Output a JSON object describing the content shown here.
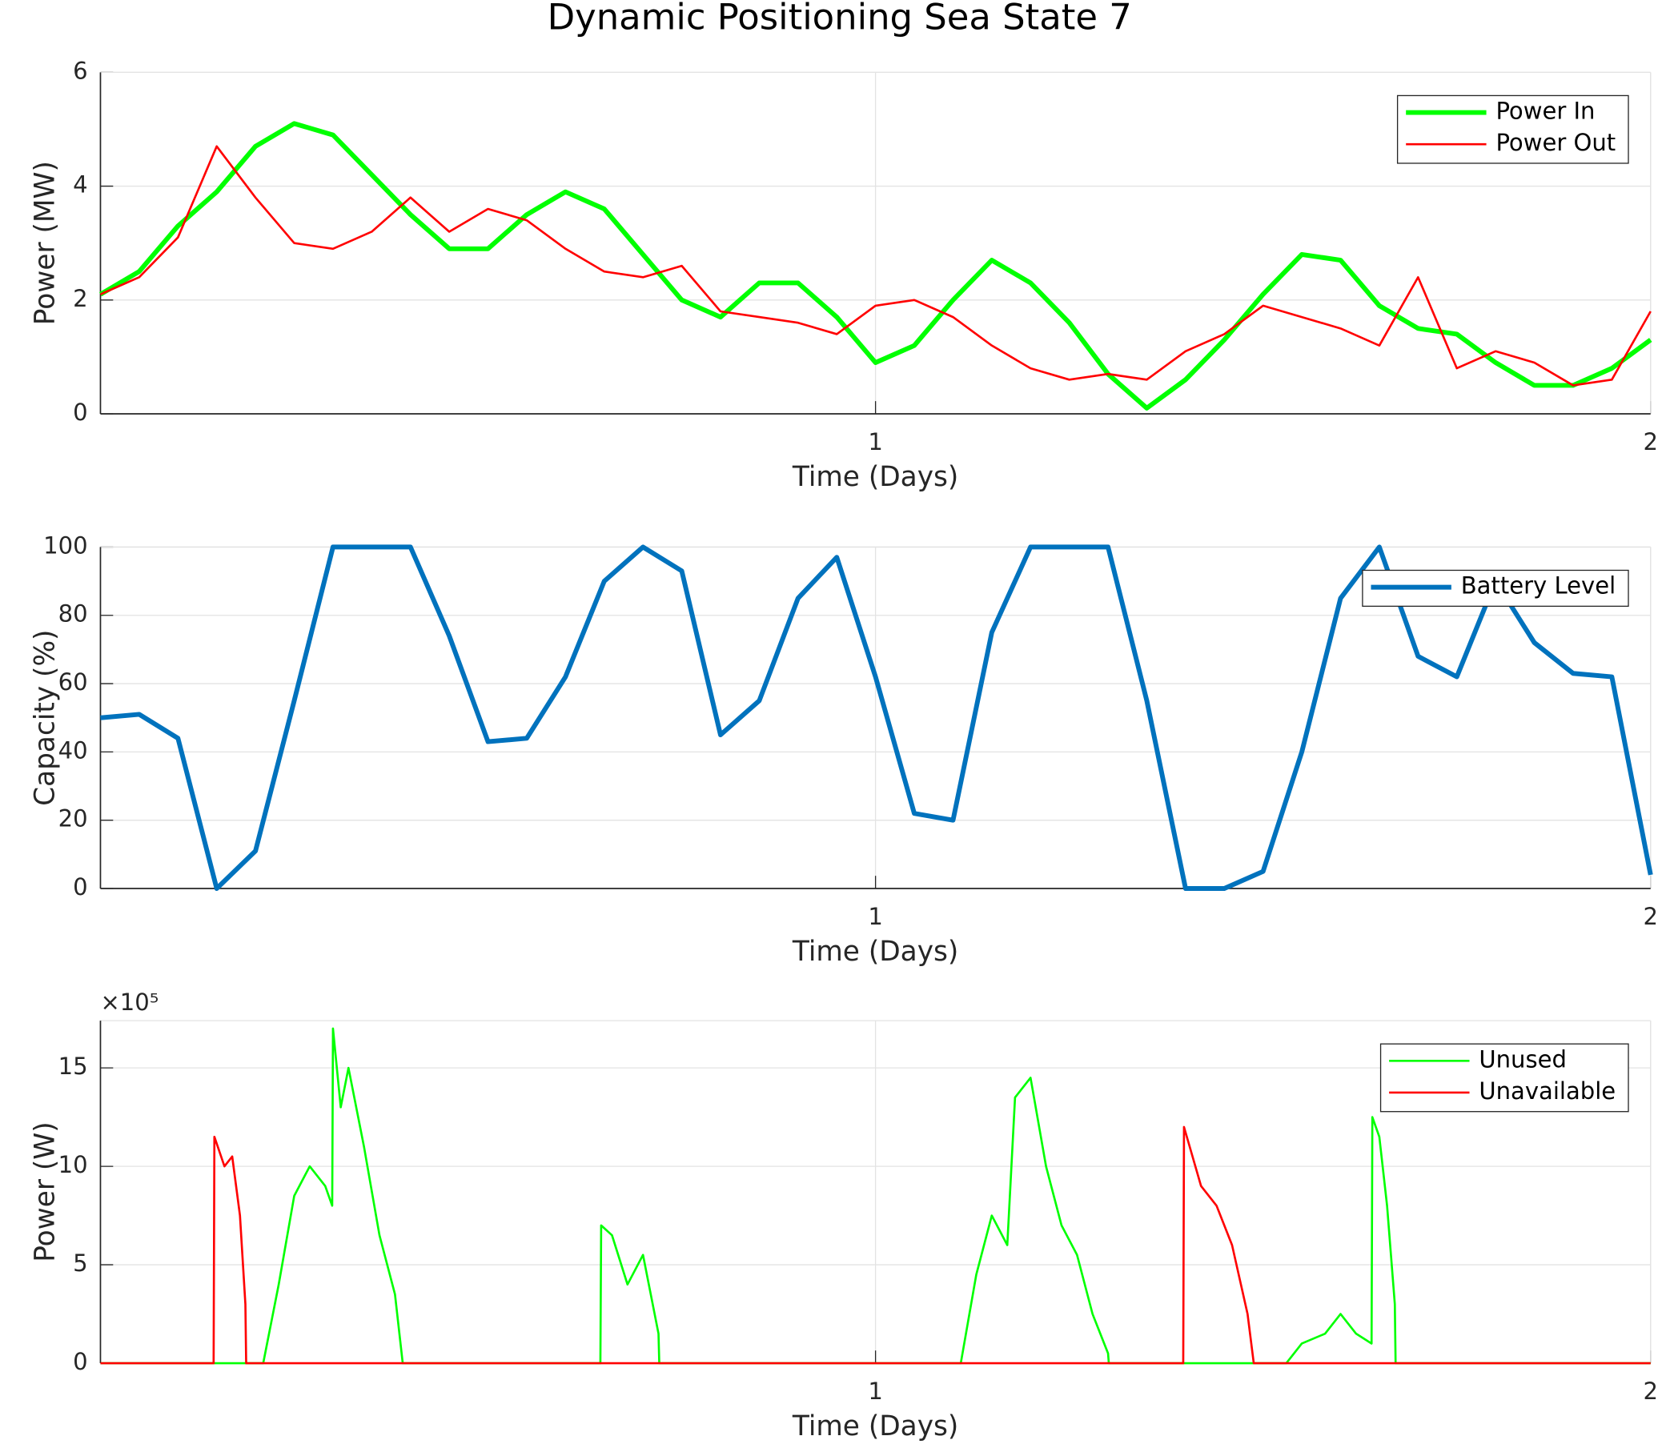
{
  "title": "Dynamic Positioning Sea State 7",
  "chart_data": [
    {
      "type": "line",
      "xlabel": "Time (Days)",
      "ylabel": "Power (MW)",
      "xlim": [
        0,
        2
      ],
      "xticks": [
        1,
        2
      ],
      "ylim": [
        0,
        6
      ],
      "yticks": [
        0,
        2,
        4,
        6
      ],
      "grid": true,
      "legend": "upper right",
      "x": [
        0,
        0.05,
        0.1,
        0.15,
        0.2,
        0.25,
        0.3,
        0.35,
        0.4,
        0.45,
        0.5,
        0.55,
        0.6,
        0.65,
        0.7,
        0.75,
        0.8,
        0.85,
        0.9,
        0.95,
        1.0,
        1.05,
        1.1,
        1.15,
        1.2,
        1.25,
        1.3,
        1.35,
        1.4,
        1.45,
        1.5,
        1.55,
        1.6,
        1.65,
        1.7,
        1.75,
        1.8,
        1.85,
        1.9,
        1.95,
        2.0
      ],
      "series": [
        {
          "name": "Power In",
          "color": "#00ff00",
          "values": [
            2.1,
            2.5,
            3.3,
            3.9,
            4.7,
            5.1,
            4.9,
            4.2,
            3.5,
            2.9,
            2.9,
            3.5,
            3.9,
            3.6,
            2.8,
            2.0,
            1.7,
            2.3,
            2.3,
            1.7,
            0.9,
            1.2,
            2.0,
            2.7,
            2.3,
            1.6,
            0.7,
            0.1,
            0.6,
            1.3,
            2.1,
            2.8,
            2.7,
            1.9,
            1.5,
            1.4,
            0.9,
            0.5,
            0.5,
            0.8,
            1.3
          ]
        },
        {
          "name": "Power Out",
          "color": "#ff0000",
          "values": [
            2.1,
            2.4,
            3.1,
            4.7,
            3.8,
            3.0,
            2.9,
            3.2,
            3.8,
            3.2,
            3.6,
            3.4,
            2.9,
            2.5,
            2.4,
            2.6,
            1.8,
            1.7,
            1.6,
            1.4,
            1.9,
            2.0,
            1.7,
            1.2,
            0.8,
            0.6,
            0.7,
            0.6,
            1.1,
            1.4,
            1.9,
            1.7,
            1.5,
            1.2,
            2.4,
            0.8,
            1.1,
            0.9,
            0.5,
            0.6,
            1.8
          ]
        }
      ]
    },
    {
      "type": "line",
      "xlabel": "Time (Days)",
      "ylabel": "Capacity (%)",
      "xlim": [
        0,
        2
      ],
      "xticks": [
        1,
        2
      ],
      "ylim": [
        0,
        100
      ],
      "yticks": [
        0,
        20,
        40,
        60,
        80,
        100
      ],
      "grid": true,
      "legend": "upper right",
      "x": [
        0,
        0.05,
        0.1,
        0.15,
        0.2,
        0.25,
        0.3,
        0.35,
        0.4,
        0.45,
        0.5,
        0.55,
        0.6,
        0.65,
        0.7,
        0.75,
        0.8,
        0.85,
        0.9,
        0.95,
        1.0,
        1.05,
        1.1,
        1.15,
        1.2,
        1.25,
        1.3,
        1.35,
        1.4,
        1.45,
        1.5,
        1.55,
        1.6,
        1.65,
        1.7,
        1.75,
        1.8,
        1.85,
        1.9,
        1.95,
        2.0
      ],
      "series": [
        {
          "name": "Battery Level",
          "color": "#0072bd",
          "values": [
            50,
            51,
            44,
            0,
            11,
            55,
            100,
            100,
            100,
            74,
            43,
            44,
            62,
            90,
            100,
            93,
            45,
            55,
            85,
            97,
            62,
            22,
            20,
            75,
            100,
            100,
            100,
            55,
            0,
            0,
            5,
            40,
            85,
            100,
            68,
            62,
            90,
            72,
            63,
            62,
            4
          ]
        }
      ]
    },
    {
      "type": "line",
      "xlabel": "Time (Days)",
      "ylabel": "Power (W)",
      "y_exponent": "×10⁵",
      "xlim": [
        0,
        2
      ],
      "xticks": [
        1,
        2
      ],
      "ylim": [
        0,
        1740000
      ],
      "yticks": [
        0,
        {
          "value": 500000,
          "label": "5"
        },
        {
          "value": 1000000,
          "label": "10"
        },
        {
          "value": 1500000,
          "label": "15"
        }
      ],
      "grid": true,
      "legend": "upper right",
      "x": [
        0,
        0.146,
        0.147,
        0.16,
        0.17,
        0.18,
        0.187,
        0.188,
        0.21,
        0.23,
        0.25,
        0.27,
        0.29,
        0.299,
        0.3,
        0.31,
        0.32,
        0.34,
        0.36,
        0.38,
        0.39,
        0.645,
        0.646,
        0.66,
        0.68,
        0.7,
        0.72,
        0.721,
        1.11,
        1.13,
        1.15,
        1.17,
        1.18,
        1.2,
        1.22,
        1.24,
        1.26,
        1.28,
        1.3,
        1.301,
        1.397,
        1.398,
        1.42,
        1.44,
        1.46,
        1.48,
        1.488,
        1.53,
        1.55,
        1.58,
        1.6,
        1.62,
        1.64,
        1.641,
        1.65,
        1.66,
        1.67,
        1.671,
        2.0
      ],
      "series": [
        {
          "name": "Unused",
          "color": "#00ff00",
          "values": [
            0,
            0,
            0,
            0,
            0,
            0,
            0,
            0,
            0,
            400000,
            850000,
            1000000,
            900000,
            800000,
            1700000,
            1300000,
            1500000,
            1100000,
            650000,
            350000,
            0,
            0,
            700000,
            650000,
            400000,
            550000,
            150000,
            0,
            0,
            450000,
            750000,
            600000,
            1350000,
            1450000,
            1000000,
            700000,
            550000,
            250000,
            50000,
            0,
            0,
            0,
            0,
            0,
            0,
            0,
            0,
            0,
            100000,
            150000,
            250000,
            150000,
            100000,
            1250000,
            1150000,
            800000,
            300000,
            0,
            0
          ]
        },
        {
          "name": "Unavailable",
          "color": "#ff0000",
          "values": [
            0,
            0,
            1150000,
            1000000,
            1050000,
            750000,
            300000,
            0,
            0,
            0,
            0,
            0,
            0,
            0,
            0,
            0,
            0,
            0,
            0,
            0,
            0,
            0,
            0,
            0,
            0,
            0,
            0,
            0,
            0,
            0,
            0,
            0,
            0,
            0,
            0,
            0,
            0,
            0,
            0,
            0,
            0,
            1200000,
            900000,
            800000,
            600000,
            250000,
            0,
            0,
            0,
            0,
            0,
            0,
            0,
            0,
            0,
            0,
            0,
            0,
            0
          ]
        }
      ]
    }
  ]
}
